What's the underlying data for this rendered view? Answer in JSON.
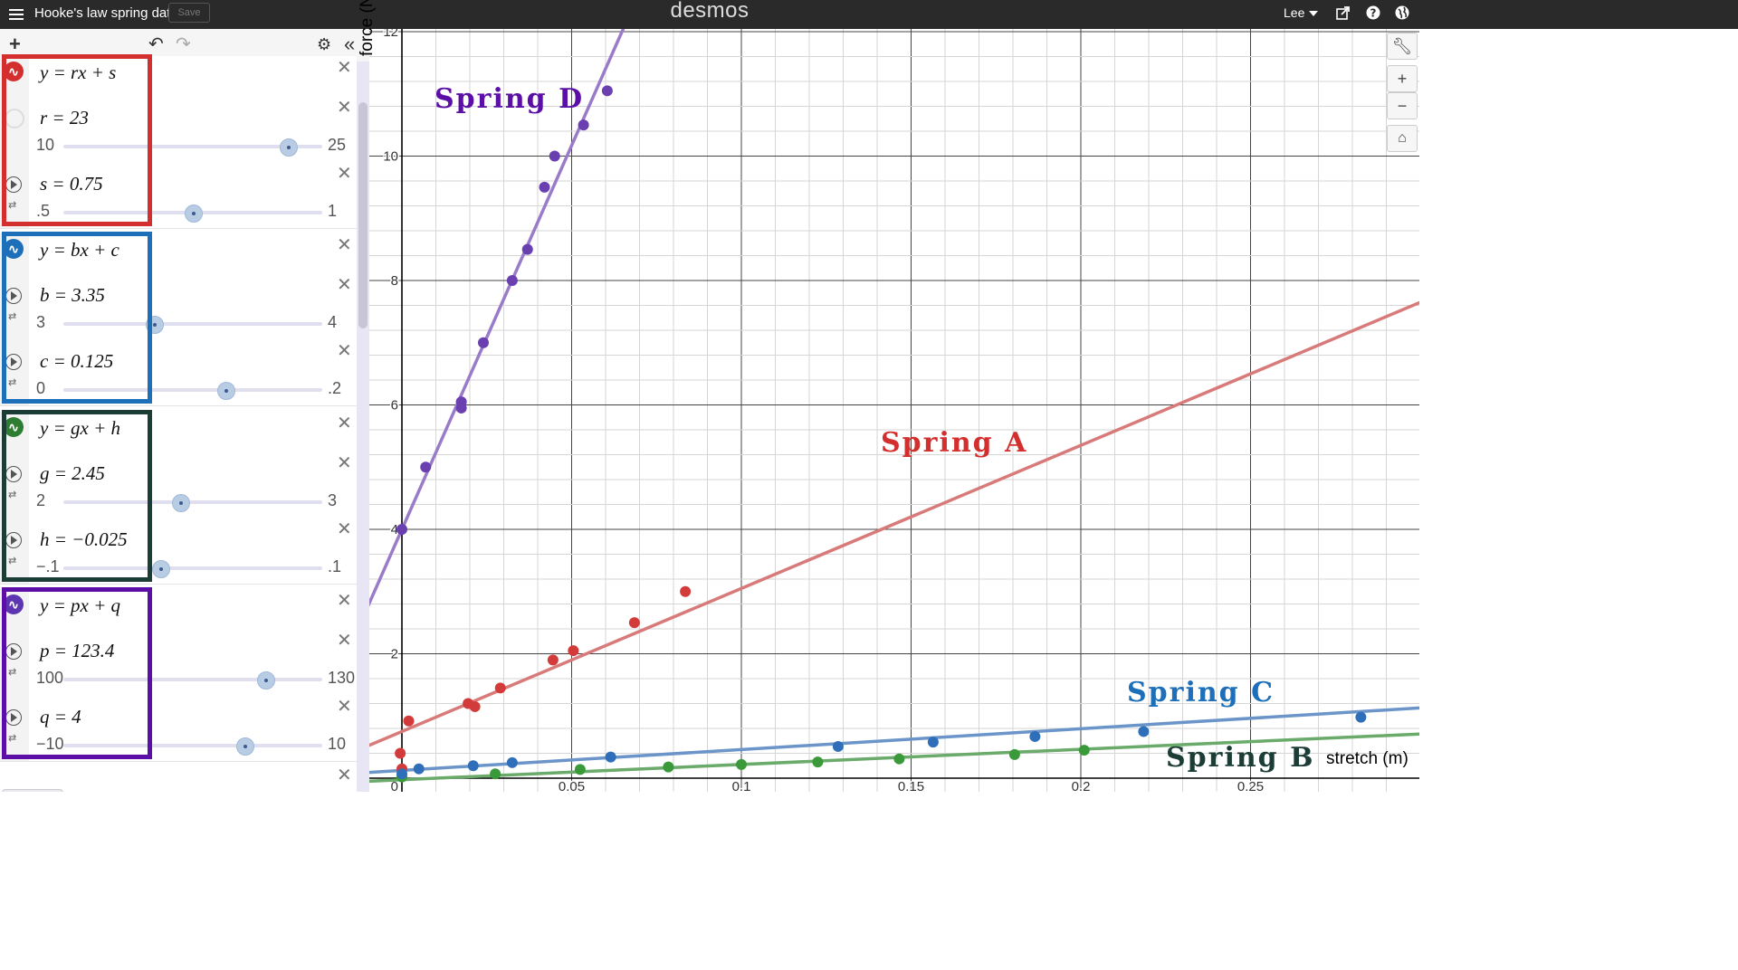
{
  "topbar": {
    "title": "Hooke's law spring data",
    "save_label": "Save",
    "brand": "desmos",
    "user": "Lee",
    "icons": [
      "menu-icon",
      "share-icon",
      "help-icon",
      "globe-icon"
    ]
  },
  "toolbar": {
    "icons": [
      "add-icon",
      "undo-icon",
      "redo-icon",
      "gear-icon",
      "collapse-icon"
    ]
  },
  "expressions": [
    {
      "equation": "y = rx + s",
      "color": "#d32f2f",
      "sliders": [
        {
          "label": "r = 23",
          "min": "10",
          "max": "25",
          "value": 23,
          "lo": 10,
          "hi": 25
        },
        {
          "label": "s = 0.75",
          "min": ".5",
          "max": "1",
          "value": 0.75,
          "lo": 0.5,
          "hi": 1
        }
      ]
    },
    {
      "equation": "y = bx + c",
      "color": "#1e6fb9",
      "sliders": [
        {
          "label": "b = 3.35",
          "min": "3",
          "max": "4",
          "value": 3.35,
          "lo": 3,
          "hi": 4
        },
        {
          "label": "c = 0.125",
          "min": "0",
          "max": ".2",
          "value": 0.125,
          "lo": 0,
          "hi": 0.2
        }
      ]
    },
    {
      "equation": "y = gx + h",
      "color": "#2e7d32",
      "sliders": [
        {
          "label": "g = 2.45",
          "min": "2",
          "max": "3",
          "value": 2.45,
          "lo": 2,
          "hi": 3
        },
        {
          "label": "h = −0.025",
          "min": "−.1",
          "max": ".1",
          "value": -0.025,
          "lo": -0.1,
          "hi": 0.1
        }
      ]
    },
    {
      "equation": "y = px + q",
      "color": "#5e35b1",
      "sliders": [
        {
          "label": "p = 123.4",
          "min": "100",
          "max": "130",
          "value": 123.4,
          "lo": 100,
          "hi": 130
        },
        {
          "label": "q = 4",
          "min": "−10",
          "max": "10",
          "value": 4,
          "lo": -10,
          "hi": 10
        }
      ]
    }
  ],
  "colors": {
    "red": "#d32f2f",
    "blue": "#1e6fb9",
    "dark_green": "#1b3d36",
    "purple": "#5b0fa6"
  },
  "graph": {
    "labels": {
      "spring_a": "Spring A",
      "spring_b": "Spring B",
      "spring_c": "Spring C",
      "spring_d": "Spring D"
    },
    "xlabel": "stretch (m)",
    "ylabel": "force (N)"
  },
  "chart_data": {
    "type": "scatter",
    "xlabel": "stretch (m)",
    "ylabel": "force (N)",
    "xlim": [
      -0.01,
      0.3
    ],
    "ylim": [
      0,
      12
    ],
    "x_ticks": [
      "0.05",
      "0.1",
      "0.15",
      "0.2",
      "0.25"
    ],
    "y_ticks": [
      "2",
      "4",
      "6",
      "8",
      "10",
      "12"
    ],
    "origin_label": "0",
    "grid": true,
    "series": [
      {
        "name": "Spring A",
        "color": "#d32f2f",
        "line": [
          23,
          0.75
        ],
        "points": [
          [
            -0.0005,
            0.4
          ],
          [
            0,
            0.15
          ],
          [
            0.002,
            0.92
          ],
          [
            0.0195,
            1.2
          ],
          [
            0.0215,
            1.15
          ],
          [
            0.029,
            1.45
          ],
          [
            0.0445,
            1.9
          ],
          [
            0.0505,
            2.05
          ],
          [
            0.0685,
            2.5
          ],
          [
            0.0835,
            3.0
          ]
        ]
      },
      {
        "name": "Spring B",
        "color": "#2e7d32",
        "line": [
          2.45,
          -0.025
        ],
        "points": [
          [
            0,
            0.02
          ],
          [
            0.0275,
            0.07
          ],
          [
            0.0525,
            0.14
          ],
          [
            0.0785,
            0.18
          ],
          [
            0.1,
            0.22
          ],
          [
            0.1225,
            0.26
          ],
          [
            0.1465,
            0.31
          ],
          [
            0.1805,
            0.38
          ],
          [
            0.201,
            0.45
          ]
        ]
      },
      {
        "name": "Spring C",
        "color": "#1e6fb9",
        "line": [
          3.35,
          0.125
        ],
        "points": [
          [
            0,
            0.07
          ],
          [
            0.005,
            0.15
          ],
          [
            0.021,
            0.2
          ],
          [
            0.0325,
            0.25
          ],
          [
            0.0615,
            0.34
          ],
          [
            0.1285,
            0.51
          ],
          [
            0.1565,
            0.58
          ],
          [
            0.1865,
            0.67
          ],
          [
            0.2185,
            0.75
          ],
          [
            0.2825,
            0.98
          ]
        ]
      },
      {
        "name": "Spring D",
        "color": "#5e35b1",
        "line": [
          123.4,
          4
        ],
        "points": [
          [
            0,
            4.0
          ],
          [
            0.007,
            5.0
          ],
          [
            0.0175,
            6.05
          ],
          [
            0.0175,
            5.95
          ],
          [
            0.024,
            7.0
          ],
          [
            0.0325,
            8.0
          ],
          [
            0.037,
            8.5
          ],
          [
            0.042,
            9.5
          ],
          [
            0.045,
            10.0
          ],
          [
            0.0535,
            10.5
          ],
          [
            0.0605,
            11.05
          ]
        ]
      }
    ]
  }
}
